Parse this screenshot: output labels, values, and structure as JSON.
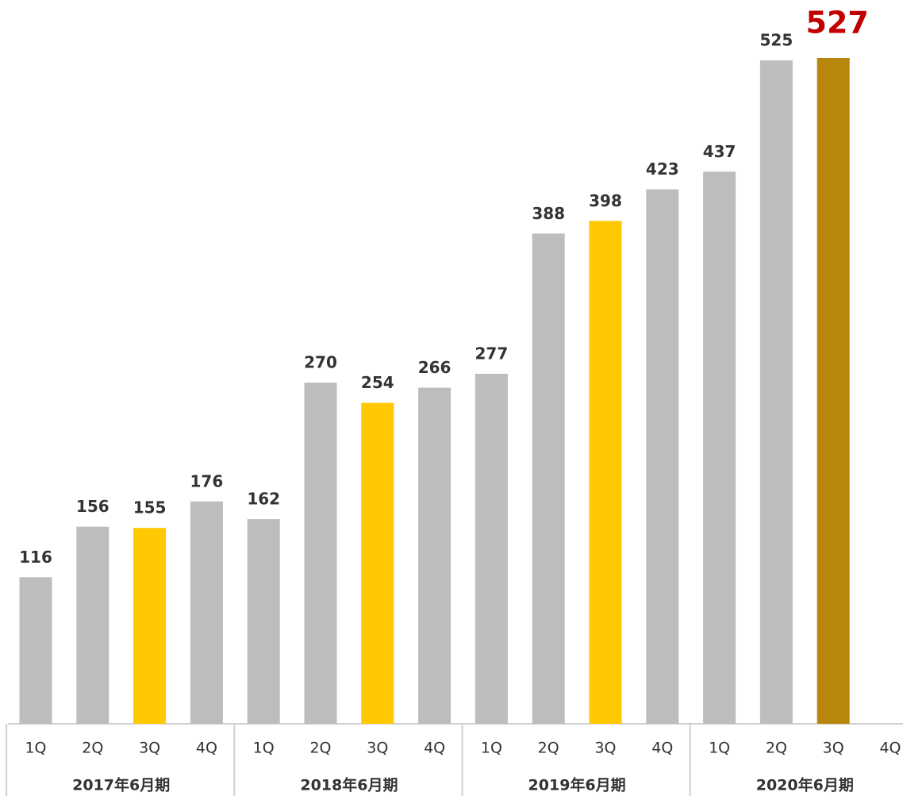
{
  "chart_data": {
    "type": "bar",
    "categories": [
      "1Q",
      "2Q",
      "3Q",
      "4Q",
      "1Q",
      "2Q",
      "3Q",
      "4Q",
      "1Q",
      "2Q",
      "3Q",
      "4Q",
      "1Q",
      "2Q",
      "3Q",
      "4Q"
    ],
    "groups": [
      "2017年6月期",
      "2018年6月期",
      "2019年6月期",
      "2020年6月期"
    ],
    "values": [
      116,
      156,
      155,
      176,
      162,
      270,
      254,
      266,
      277,
      388,
      398,
      423,
      437,
      525,
      527,
      null
    ],
    "colors": [
      "#bdbdbd",
      "#bdbdbd",
      "#ffc800",
      "#bdbdbd",
      "#bdbdbd",
      "#bdbdbd",
      "#ffc800",
      "#bdbdbd",
      "#bdbdbd",
      "#bdbdbd",
      "#ffc800",
      "#bdbdbd",
      "#bdbdbd",
      "#bdbdbd",
      "#b8860b",
      null
    ],
    "value_label_colors": [
      "#333333",
      "#333333",
      "#333333",
      "#333333",
      "#333333",
      "#333333",
      "#333333",
      "#333333",
      "#333333",
      "#333333",
      "#333333",
      "#333333",
      "#333333",
      "#333333",
      "#c00000",
      null
    ]
  }
}
